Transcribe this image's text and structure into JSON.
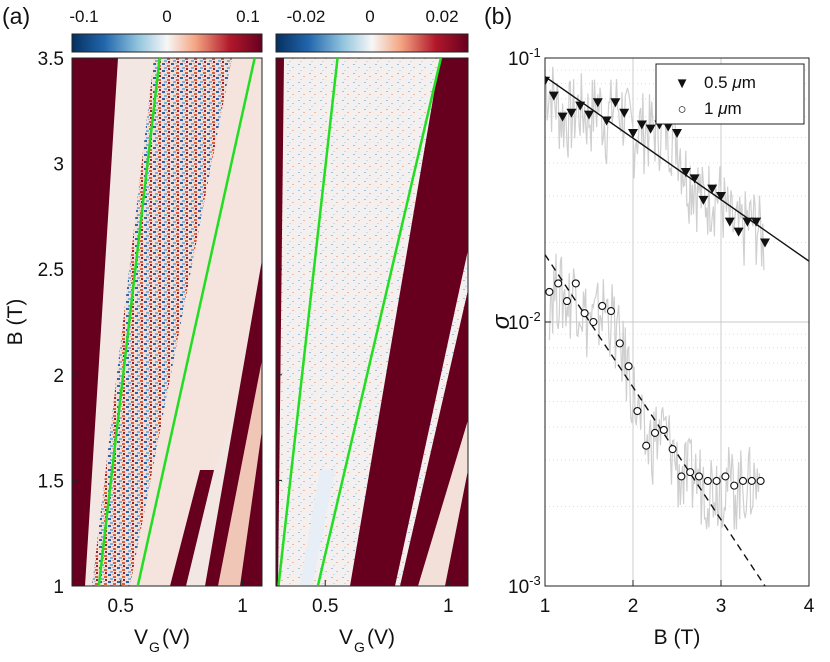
{
  "panel_a": {
    "label": "(a)",
    "ylabel": "B (T)",
    "xlabel_main": "V",
    "xlabel_sub": "G",
    "xlabel_unit": "(V)",
    "colorbar_left": {
      "min_label": "-0.1",
      "mid_label": "0",
      "max_label": "0.1"
    },
    "colorbar_right": {
      "min_label": "-0.02",
      "mid_label": "0",
      "max_label": "0.02"
    },
    "y_ticks": [
      "1",
      "1.5",
      "2",
      "2.5",
      "3",
      "3.5"
    ],
    "x_ticks": [
      "0.5",
      "1"
    ]
  },
  "panel_b": {
    "label": "(b)",
    "ylabel": "σ",
    "xlabel": "B (T)",
    "x_ticks": [
      "1",
      "2",
      "3",
      "4"
    ],
    "y_ticks": [
      {
        "base": "10",
        "exp": "-1"
      },
      {
        "base": "10",
        "exp": "-2"
      },
      {
        "base": "10",
        "exp": "-3"
      }
    ],
    "legend": [
      {
        "symbol": "▼",
        "pre": "0.5 ",
        "mu": "μ",
        "post": "m"
      },
      {
        "symbol": "○",
        "pre": "1 ",
        "mu": "μ",
        "post": "m"
      }
    ]
  },
  "chart_data": [
    {
      "type": "heatmap",
      "title": "",
      "xlabel": "V_G (V)",
      "ylabel": "B (T)",
      "xlim": [
        0.3,
        1.08
      ],
      "ylim": [
        1,
        3.5
      ],
      "clim": [
        -0.1,
        0.1
      ],
      "colormap": [
        "#053061",
        "#2166ac",
        "#92c5de",
        "#f7f7f7",
        "#f4a582",
        "#b2182b",
        "#67001f"
      ],
      "green_lines": [
        {
          "v_at_1T": 0.41,
          "v_at_3p5T": 0.66
        },
        {
          "v_at_1T": 0.57,
          "v_at_3p5T": 1.05
        }
      ]
    },
    {
      "type": "heatmap",
      "title": "",
      "xlabel": "V_G (V)",
      "ylabel": "B (T)",
      "xlim": [
        0.3,
        1.08
      ],
      "ylim": [
        1,
        3.5
      ],
      "clim": [
        -0.02,
        0.02
      ],
      "colormap": [
        "#053061",
        "#2166ac",
        "#92c5de",
        "#f7f7f7",
        "#f4a582",
        "#b2182b",
        "#67001f"
      ],
      "green_lines": [
        {
          "v_at_1T": 0.31,
          "v_at_3p5T": 0.55
        },
        {
          "v_at_1T": 0.47,
          "v_at_3p5T": 0.97
        }
      ]
    },
    {
      "type": "scatter",
      "title": "",
      "xlabel": "B (T)",
      "ylabel": "σ",
      "xlim": [
        1,
        4
      ],
      "ylim": [
        0.001,
        0.1
      ],
      "yscale": "log",
      "grid": true,
      "legend_position": "top-right",
      "series": [
        {
          "name": "0.5 μm",
          "marker": "triangle-down-filled",
          "x": [
            1.0,
            1.1,
            1.2,
            1.3,
            1.4,
            1.5,
            1.6,
            1.7,
            1.8,
            1.9,
            2.0,
            2.1,
            2.2,
            2.3,
            2.4,
            2.5,
            2.6,
            2.7,
            2.8,
            2.9,
            3.0,
            3.1,
            3.2,
            3.3,
            3.4,
            3.5
          ],
          "y": [
            0.082,
            0.072,
            0.06,
            0.062,
            0.066,
            0.061,
            0.068,
            0.058,
            0.068,
            0.062,
            0.052,
            0.056,
            0.054,
            0.056,
            0.055,
            0.052,
            0.037,
            0.035,
            0.029,
            0.032,
            0.03,
            0.024,
            0.022,
            0.024,
            0.024,
            0.02
          ]
        },
        {
          "name": "1 μm",
          "marker": "circle-open",
          "x": [
            1.05,
            1.15,
            1.25,
            1.35,
            1.45,
            1.55,
            1.65,
            1.75,
            1.85,
            1.95,
            2.05,
            2.15,
            2.25,
            2.35,
            2.45,
            2.55,
            2.65,
            2.75,
            2.85,
            2.95,
            3.05,
            3.15,
            3.25,
            3.35,
            3.45
          ],
          "y": [
            0.013,
            0.014,
            0.012,
            0.014,
            0.0108,
            0.01,
            0.0115,
            0.011,
            0.0083,
            0.0068,
            0.0046,
            0.0034,
            0.0038,
            0.0039,
            0.0033,
            0.0026,
            0.0027,
            0.0026,
            0.0025,
            0.0025,
            0.0026,
            0.0024,
            0.0025,
            0.0025,
            0.0025
          ]
        },
        {
          "name": "fit 0.5 μm",
          "style": "solid",
          "x": [
            1.0,
            4.0
          ],
          "y": [
            0.085,
            0.017
          ]
        },
        {
          "name": "fit 1 μm",
          "style": "dashed",
          "x": [
            1.0,
            3.5
          ],
          "y": [
            0.018,
            0.001
          ]
        }
      ]
    }
  ]
}
